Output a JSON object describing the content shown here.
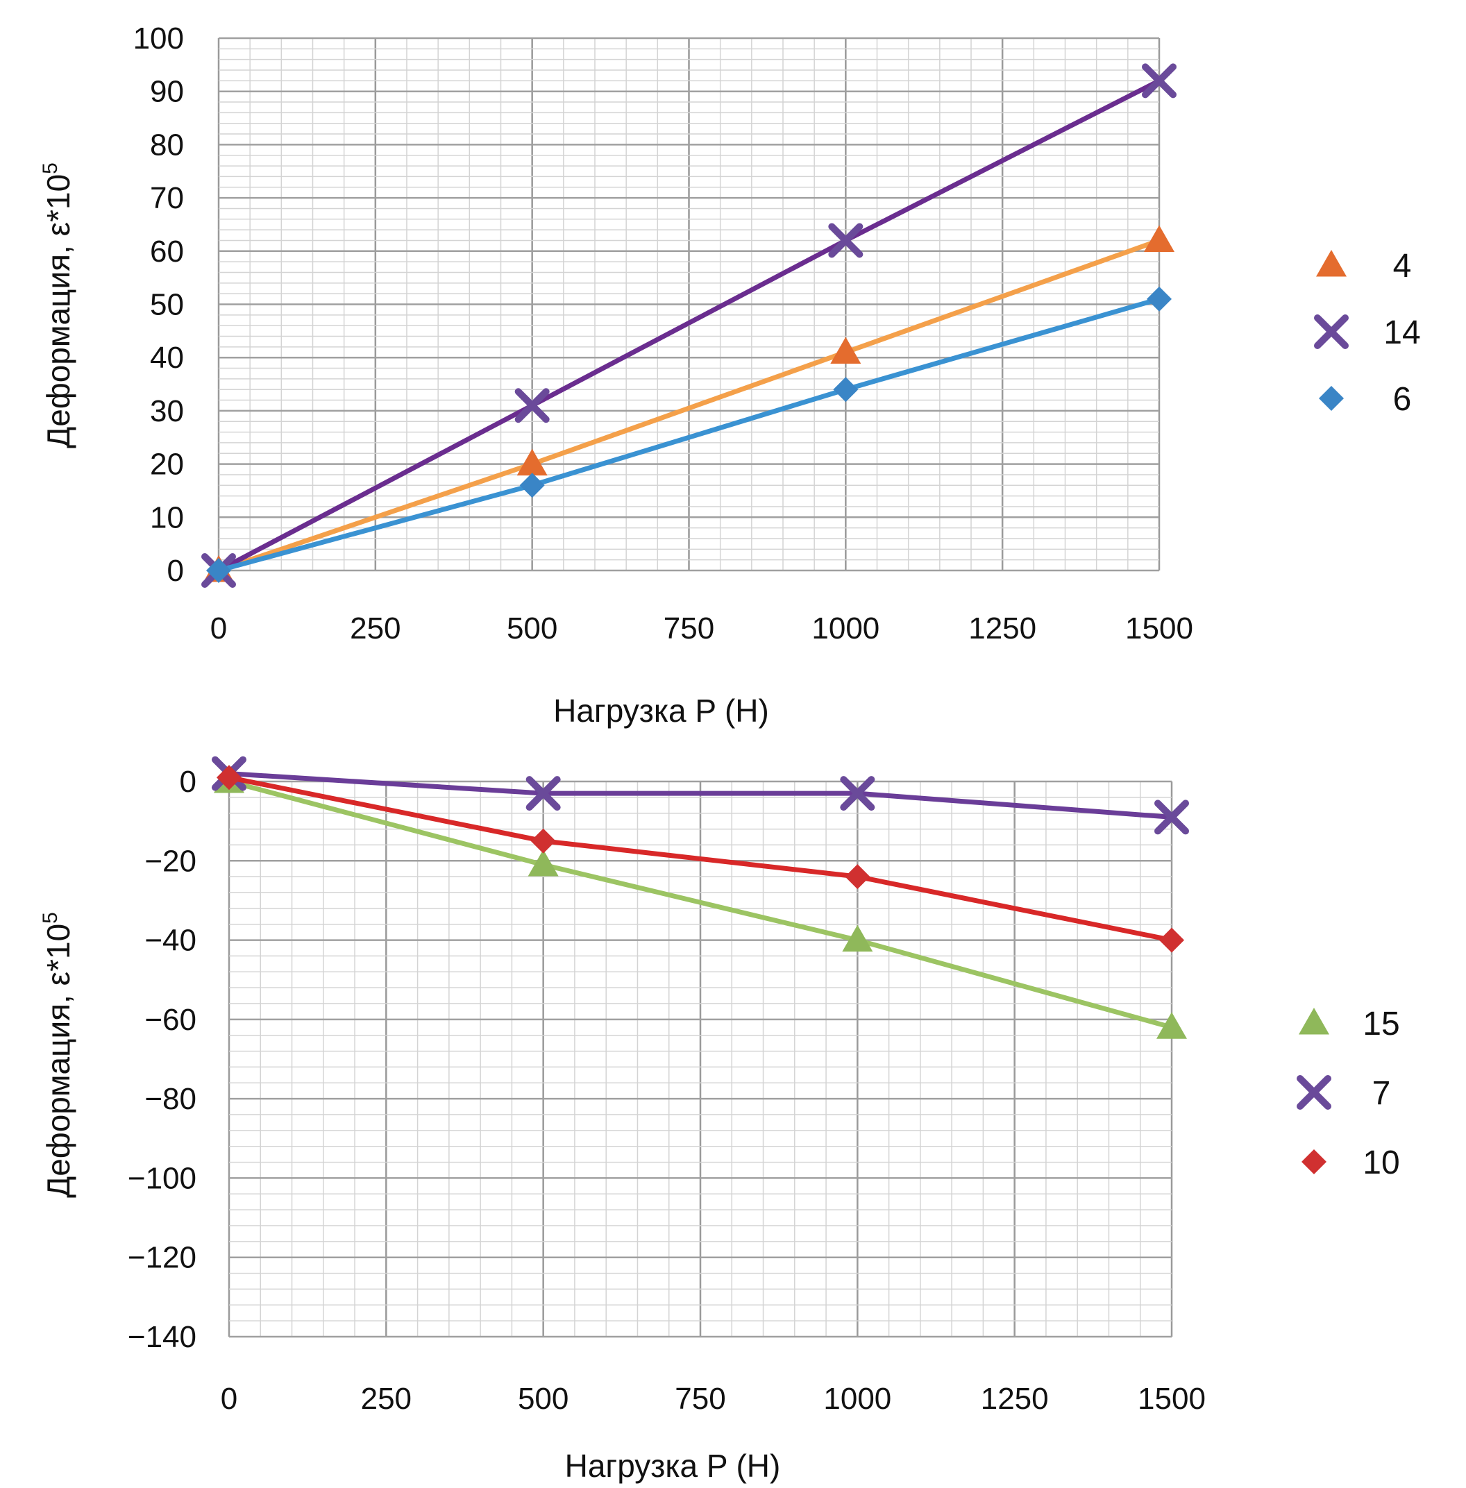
{
  "chart_data": [
    {
      "type": "line",
      "xlabel": "Нагрузка P (Н)",
      "ylabel": "Деформация, ε*10",
      "ylabel_exponent": "5",
      "xlim": [
        0,
        1500
      ],
      "ylim": [
        0,
        100
      ],
      "xticks": [
        0,
        250,
        500,
        750,
        1000,
        1250,
        1500
      ],
      "yticks": [
        0,
        10,
        20,
        30,
        40,
        50,
        60,
        70,
        80,
        90,
        100
      ],
      "grid": true,
      "legend_position": "right",
      "series": [
        {
          "name": "4",
          "marker": "triangle",
          "color": "#e46c2e",
          "line_color": "#f4a04a",
          "x": [
            0,
            500,
            1000,
            1500
          ],
          "y": [
            0,
            20,
            41,
            62
          ]
        },
        {
          "name": "14",
          "marker": "x",
          "color": "#6a4a9a",
          "line_color": "#6a2d8f",
          "x": [
            0,
            500,
            1000,
            1500
          ],
          "y": [
            0,
            31,
            62,
            92
          ]
        },
        {
          "name": "6",
          "marker": "diamond",
          "color": "#3a85c6",
          "line_color": "#3a92d2",
          "x": [
            0,
            500,
            1000,
            1500
          ],
          "y": [
            0,
            16,
            34,
            51
          ]
        }
      ]
    },
    {
      "type": "line",
      "xlabel": "Нагрузка P (Н)",
      "ylabel": "Деформация, ε*10",
      "ylabel_exponent": "5",
      "xlim": [
        0,
        1500
      ],
      "ylim": [
        -140,
        0
      ],
      "xticks": [
        0,
        250,
        500,
        750,
        1000,
        1250,
        1500
      ],
      "yticks": [
        0,
        -20,
        -40,
        -60,
        -80,
        -100,
        -120,
        -140
      ],
      "ytick_labels": [
        "0",
        "−20",
        "−40",
        "−60",
        "−80",
        "−100",
        "−120",
        "−140"
      ],
      "grid": true,
      "legend_position": "right",
      "series": [
        {
          "name": "15",
          "marker": "triangle",
          "color": "#8fb85a",
          "line_color": "#9cc463",
          "x": [
            0,
            500,
            1000,
            1500
          ],
          "y": [
            0,
            -21,
            -40,
            -62
          ]
        },
        {
          "name": "7",
          "marker": "x",
          "color": "#6a4a9a",
          "line_color": "#6a3d98",
          "x": [
            0,
            500,
            1000,
            1500
          ],
          "y": [
            2,
            -3,
            -3,
            -9
          ]
        },
        {
          "name": "10",
          "marker": "diamond",
          "color": "#d03030",
          "line_color": "#d82828",
          "x": [
            0,
            500,
            1000,
            1500
          ],
          "y": [
            1,
            -15,
            -24,
            -40
          ]
        }
      ]
    }
  ]
}
